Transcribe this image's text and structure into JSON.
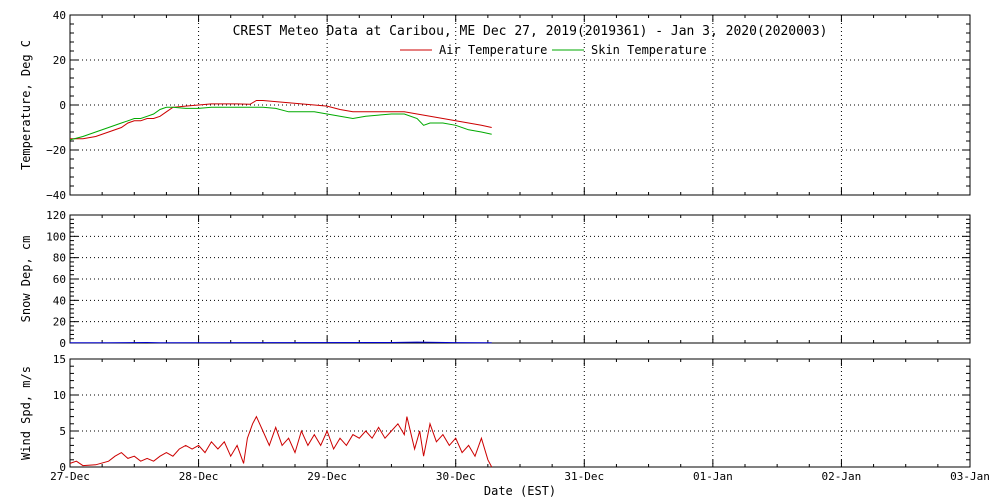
{
  "chart_data": [
    {
      "type": "line",
      "title": "CREST Meteo Data at Caribou, ME   Dec 27, 2019(2019361) - Jan  3, 2020(2020003)",
      "ylabel": "Temperature, Deg C",
      "ylim": [
        -40,
        40
      ],
      "y_ticks": [
        "40",
        "20",
        "0",
        "−20",
        "−40"
      ],
      "y_tick_values": [
        40,
        20,
        0,
        -20,
        -40
      ],
      "x_range_days": [
        0,
        7
      ],
      "legend_position": "top-center",
      "grid": true,
      "series": [
        {
          "name": "Air Temperature",
          "color": "#cc0000",
          "points": [
            [
              0,
              -15
            ],
            [
              0.1,
              -15
            ],
            [
              0.2,
              -14
            ],
            [
              0.3,
              -12
            ],
            [
              0.4,
              -10
            ],
            [
              0.45,
              -8
            ],
            [
              0.5,
              -7
            ],
            [
              0.55,
              -7
            ],
            [
              0.6,
              -6
            ],
            [
              0.65,
              -6
            ],
            [
              0.7,
              -5
            ],
            [
              0.75,
              -3
            ],
            [
              0.8,
              -1
            ],
            [
              0.9,
              -0.5
            ],
            [
              1.0,
              0
            ],
            [
              1.1,
              0.5
            ],
            [
              1.2,
              0.5
            ],
            [
              1.3,
              0.5
            ],
            [
              1.4,
              0.3
            ],
            [
              1.45,
              2
            ],
            [
              1.5,
              2
            ],
            [
              1.6,
              1.5
            ],
            [
              1.7,
              1
            ],
            [
              1.8,
              0.5
            ],
            [
              1.9,
              0
            ],
            [
              2.0,
              -0.5
            ],
            [
              2.1,
              -2
            ],
            [
              2.2,
              -3
            ],
            [
              2.3,
              -3
            ],
            [
              2.4,
              -3
            ],
            [
              2.5,
              -3
            ],
            [
              2.6,
              -3
            ],
            [
              2.7,
              -4
            ],
            [
              2.8,
              -5
            ],
            [
              2.9,
              -6
            ],
            [
              3.0,
              -7
            ],
            [
              3.1,
              -8
            ],
            [
              3.2,
              -9
            ],
            [
              3.28,
              -10
            ]
          ]
        },
        {
          "name": "Skin Temperature",
          "color": "#00aa00",
          "points": [
            [
              0,
              -15.5
            ],
            [
              0.1,
              -14
            ],
            [
              0.2,
              -12
            ],
            [
              0.3,
              -10
            ],
            [
              0.4,
              -8
            ],
            [
              0.45,
              -7
            ],
            [
              0.5,
              -6
            ],
            [
              0.55,
              -6
            ],
            [
              0.6,
              -5
            ],
            [
              0.65,
              -4
            ],
            [
              0.7,
              -2
            ],
            [
              0.75,
              -1
            ],
            [
              0.8,
              -1
            ],
            [
              0.9,
              -1.5
            ],
            [
              1.0,
              -1.5
            ],
            [
              1.1,
              -1
            ],
            [
              1.2,
              -1
            ],
            [
              1.3,
              -1
            ],
            [
              1.4,
              -1
            ],
            [
              1.5,
              -1
            ],
            [
              1.6,
              -1.5
            ],
            [
              1.7,
              -3
            ],
            [
              1.8,
              -3
            ],
            [
              1.9,
              -3
            ],
            [
              2.0,
              -4
            ],
            [
              2.1,
              -5
            ],
            [
              2.2,
              -6
            ],
            [
              2.3,
              -5
            ],
            [
              2.4,
              -4.5
            ],
            [
              2.5,
              -4
            ],
            [
              2.6,
              -4
            ],
            [
              2.7,
              -6
            ],
            [
              2.75,
              -9
            ],
            [
              2.8,
              -8
            ],
            [
              2.9,
              -8
            ],
            [
              3.0,
              -9
            ],
            [
              3.1,
              -11
            ],
            [
              3.2,
              -12
            ],
            [
              3.28,
              -13
            ]
          ]
        }
      ]
    },
    {
      "type": "line",
      "ylabel": "Snow Dep, cm",
      "ylim": [
        0,
        120
      ],
      "y_ticks": [
        "120",
        "100",
        "80",
        "60",
        "40",
        "20",
        "0"
      ],
      "y_tick_values": [
        120,
        100,
        80,
        60,
        40,
        20,
        0
      ],
      "x_range_days": [
        0,
        7
      ],
      "grid": true,
      "series": [
        {
          "color": "#0000cc",
          "points": [
            [
              0,
              0.3
            ],
            [
              0.3,
              0.3
            ],
            [
              0.6,
              0.5
            ],
            [
              0.7,
              0.3
            ],
            [
              2.5,
              0.5
            ],
            [
              2.7,
              0.8
            ],
            [
              3.0,
              0.4
            ],
            [
              3.28,
              0.3
            ]
          ]
        }
      ]
    },
    {
      "type": "line",
      "ylabel": "Wind Spd, m/s",
      "ylim": [
        0,
        15
      ],
      "y_ticks": [
        "15",
        "10",
        "5",
        "0"
      ],
      "y_tick_values": [
        15,
        10,
        5,
        0
      ],
      "x_range_days": [
        0,
        7
      ],
      "grid": true,
      "x_ticks": [
        "27-Dec",
        "28-Dec",
        "29-Dec",
        "30-Dec",
        "31-Dec",
        "01-Jan",
        "02-Jan",
        "03-Jan"
      ],
      "xlabel": "Date (EST)",
      "series": [
        {
          "color": "#cc0000",
          "points": [
            [
              0,
              0.5
            ],
            [
              0.05,
              0.8
            ],
            [
              0.1,
              0.2
            ],
            [
              0.2,
              0.3
            ],
            [
              0.3,
              0.8
            ],
            [
              0.35,
              1.5
            ],
            [
              0.4,
              2
            ],
            [
              0.45,
              1.2
            ],
            [
              0.5,
              1.5
            ],
            [
              0.55,
              0.8
            ],
            [
              0.6,
              1.2
            ],
            [
              0.65,
              0.8
            ],
            [
              0.7,
              1.5
            ],
            [
              0.75,
              2
            ],
            [
              0.8,
              1.5
            ],
            [
              0.85,
              2.5
            ],
            [
              0.9,
              3
            ],
            [
              0.95,
              2.5
            ],
            [
              1.0,
              3
            ],
            [
              1.05,
              2
            ],
            [
              1.1,
              3.5
            ],
            [
              1.15,
              2.5
            ],
            [
              1.2,
              3.5
            ],
            [
              1.25,
              1.5
            ],
            [
              1.3,
              3
            ],
            [
              1.35,
              0.5
            ],
            [
              1.38,
              4
            ],
            [
              1.42,
              6
            ],
            [
              1.45,
              7
            ],
            [
              1.5,
              5
            ],
            [
              1.55,
              3
            ],
            [
              1.6,
              5.5
            ],
            [
              1.65,
              3
            ],
            [
              1.7,
              4
            ],
            [
              1.75,
              2
            ],
            [
              1.8,
              5
            ],
            [
              1.85,
              3
            ],
            [
              1.9,
              4.5
            ],
            [
              1.95,
              3
            ],
            [
              2.0,
              5
            ],
            [
              2.05,
              2.5
            ],
            [
              2.1,
              4
            ],
            [
              2.15,
              3
            ],
            [
              2.2,
              4.5
            ],
            [
              2.25,
              4
            ],
            [
              2.3,
              5
            ],
            [
              2.35,
              4
            ],
            [
              2.4,
              5.5
            ],
            [
              2.45,
              4
            ],
            [
              2.5,
              5
            ],
            [
              2.55,
              6
            ],
            [
              2.6,
              4.5
            ],
            [
              2.62,
              7
            ],
            [
              2.68,
              2.5
            ],
            [
              2.72,
              5
            ],
            [
              2.75,
              1.5
            ],
            [
              2.8,
              6
            ],
            [
              2.85,
              3.5
            ],
            [
              2.9,
              4.5
            ],
            [
              2.95,
              3
            ],
            [
              3.0,
              4
            ],
            [
              3.05,
              2
            ],
            [
              3.1,
              3
            ],
            [
              3.15,
              1.5
            ],
            [
              3.2,
              4
            ],
            [
              3.25,
              1
            ],
            [
              3.28,
              0
            ]
          ]
        }
      ]
    }
  ]
}
